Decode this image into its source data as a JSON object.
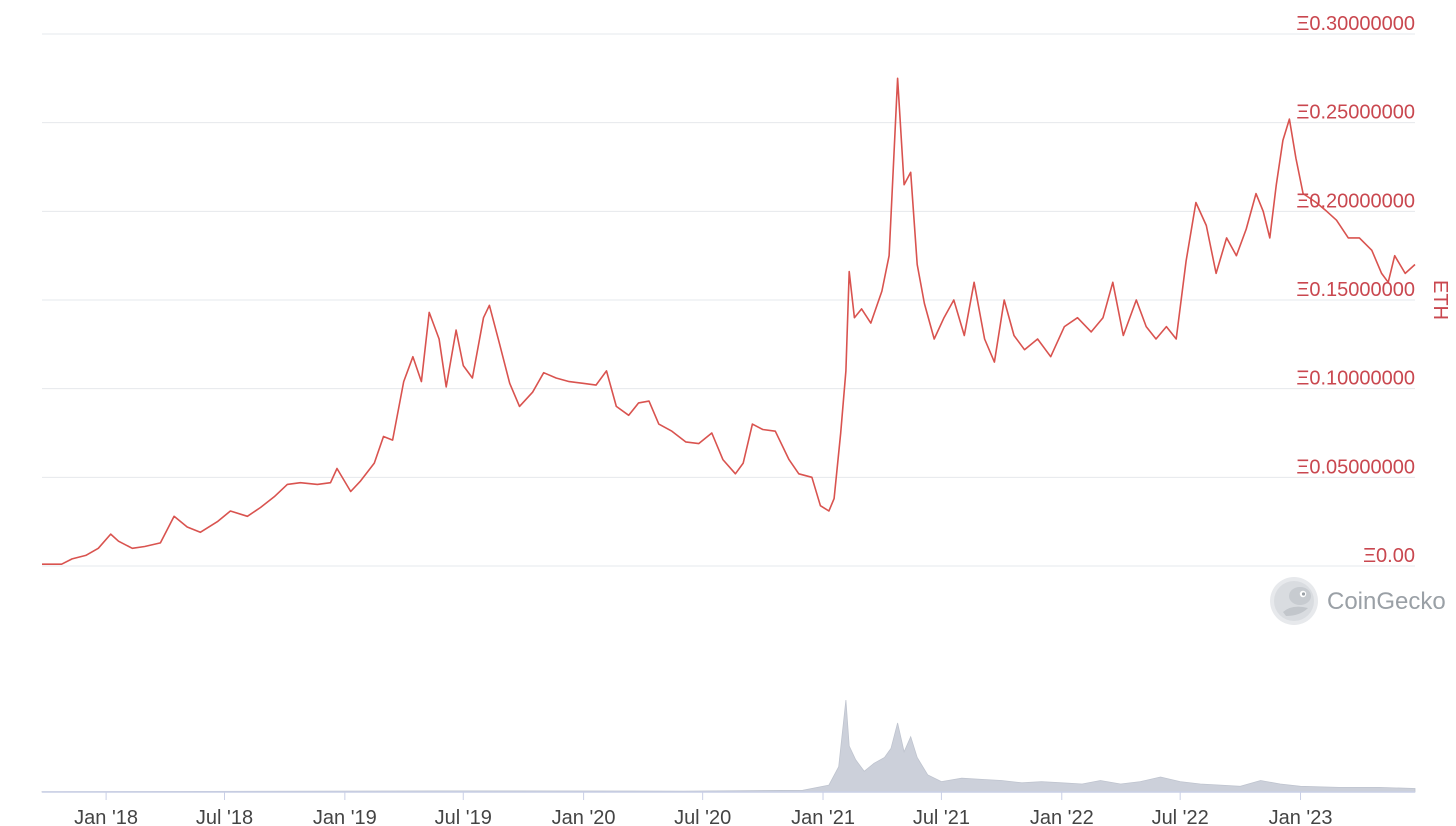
{
  "chart_data": {
    "type": "line",
    "ylabel": "ETH",
    "y_ticks": [
      "Ξ0.00",
      "Ξ0.05000000",
      "Ξ0.10000000",
      "Ξ0.15000000",
      "Ξ0.20000000",
      "Ξ0.25000000",
      "Ξ0.30000000"
    ],
    "y_tick_values": [
      0,
      0.05,
      0.1,
      0.15,
      0.2,
      0.25,
      0.3
    ],
    "ylim": [
      0,
      0.3
    ],
    "x_ticks": [
      "Jan '18",
      "Jul '18",
      "Jan '19",
      "Jul '19",
      "Jan '20",
      "Jul '20",
      "Jan '21",
      "Jul '21",
      "Jan '22",
      "Jul '22",
      "Jan '23"
    ],
    "x_tick_dates": [
      "2018-01-01",
      "2018-07-01",
      "2019-01-01",
      "2019-07-01",
      "2020-01-01",
      "2020-07-01",
      "2021-01-01",
      "2021-07-01",
      "2022-01-01",
      "2022-07-01",
      "2023-01-01"
    ],
    "xlim": [
      "2017-09-25",
      "2023-06-25"
    ],
    "grid": true,
    "series": [
      {
        "color": "#d9534f",
        "points": [
          [
            "2017-09-25",
            0.001
          ],
          [
            "2017-10-25",
            0.001
          ],
          [
            "2017-11-10",
            0.004
          ],
          [
            "2017-12-01",
            0.006
          ],
          [
            "2017-12-20",
            0.01
          ],
          [
            "2018-01-08",
            0.018
          ],
          [
            "2018-01-20",
            0.014
          ],
          [
            "2018-02-10",
            0.01
          ],
          [
            "2018-03-01",
            0.011
          ],
          [
            "2018-03-25",
            0.013
          ],
          [
            "2018-04-15",
            0.028
          ],
          [
            "2018-05-05",
            0.022
          ],
          [
            "2018-05-25",
            0.019
          ],
          [
            "2018-06-20",
            0.025
          ],
          [
            "2018-07-10",
            0.031
          ],
          [
            "2018-08-05",
            0.028
          ],
          [
            "2018-08-25",
            0.033
          ],
          [
            "2018-09-15",
            0.039
          ],
          [
            "2018-10-05",
            0.046
          ],
          [
            "2018-10-25",
            0.047
          ],
          [
            "2018-11-20",
            0.046
          ],
          [
            "2018-12-10",
            0.047
          ],
          [
            "2018-12-20",
            0.055
          ],
          [
            "2019-01-10",
            0.042
          ],
          [
            "2019-01-25",
            0.048
          ],
          [
            "2019-02-15",
            0.058
          ],
          [
            "2019-03-01",
            0.073
          ],
          [
            "2019-03-15",
            0.071
          ],
          [
            "2019-04-01",
            0.104
          ],
          [
            "2019-04-15",
            0.118
          ],
          [
            "2019-04-28",
            0.104
          ],
          [
            "2019-05-10",
            0.143
          ],
          [
            "2019-05-25",
            0.128
          ],
          [
            "2019-06-05",
            0.101
          ],
          [
            "2019-06-20",
            0.133
          ],
          [
            "2019-07-01",
            0.113
          ],
          [
            "2019-07-15",
            0.106
          ],
          [
            "2019-08-01",
            0.14
          ],
          [
            "2019-08-10",
            0.147
          ],
          [
            "2019-08-25",
            0.126
          ],
          [
            "2019-09-10",
            0.103
          ],
          [
            "2019-09-25",
            0.09
          ],
          [
            "2019-10-15",
            0.098
          ],
          [
            "2019-11-01",
            0.109
          ],
          [
            "2019-11-20",
            0.106
          ],
          [
            "2019-12-10",
            0.104
          ],
          [
            "2019-12-31",
            0.103
          ],
          [
            "2020-01-20",
            0.102
          ],
          [
            "2020-02-05",
            0.11
          ],
          [
            "2020-02-20",
            0.09
          ],
          [
            "2020-03-10",
            0.085
          ],
          [
            "2020-03-25",
            0.092
          ],
          [
            "2020-04-10",
            0.093
          ],
          [
            "2020-04-25",
            0.08
          ],
          [
            "2020-05-15",
            0.076
          ],
          [
            "2020-06-05",
            0.07
          ],
          [
            "2020-06-25",
            0.069
          ],
          [
            "2020-07-15",
            0.075
          ],
          [
            "2020-08-01",
            0.06
          ],
          [
            "2020-08-20",
            0.052
          ],
          [
            "2020-09-01",
            0.058
          ],
          [
            "2020-09-15",
            0.08
          ],
          [
            "2020-10-01",
            0.077
          ],
          [
            "2020-10-20",
            0.076
          ],
          [
            "2020-11-10",
            0.06
          ],
          [
            "2020-11-25",
            0.052
          ],
          [
            "2020-12-15",
            0.05
          ],
          [
            "2020-12-28",
            0.034
          ],
          [
            "2021-01-10",
            0.031
          ],
          [
            "2021-01-18",
            0.038
          ],
          [
            "2021-01-28",
            0.075
          ],
          [
            "2021-02-05",
            0.11
          ],
          [
            "2021-02-10",
            0.166
          ],
          [
            "2021-02-18",
            0.14
          ],
          [
            "2021-03-01",
            0.145
          ],
          [
            "2021-03-15",
            0.137
          ],
          [
            "2021-04-01",
            0.155
          ],
          [
            "2021-04-12",
            0.175
          ],
          [
            "2021-04-25",
            0.275
          ],
          [
            "2021-05-05",
            0.215
          ],
          [
            "2021-05-15",
            0.222
          ],
          [
            "2021-05-25",
            0.17
          ],
          [
            "2021-06-05",
            0.148
          ],
          [
            "2021-06-20",
            0.128
          ],
          [
            "2021-07-05",
            0.14
          ],
          [
            "2021-07-20",
            0.15
          ],
          [
            "2021-08-05",
            0.13
          ],
          [
            "2021-08-20",
            0.16
          ],
          [
            "2021-09-05",
            0.128
          ],
          [
            "2021-09-20",
            0.115
          ],
          [
            "2021-10-05",
            0.15
          ],
          [
            "2021-10-20",
            0.13
          ],
          [
            "2021-11-05",
            0.122
          ],
          [
            "2021-11-25",
            0.128
          ],
          [
            "2021-12-15",
            0.118
          ],
          [
            "2022-01-05",
            0.135
          ],
          [
            "2022-01-25",
            0.14
          ],
          [
            "2022-02-15",
            0.132
          ],
          [
            "2022-03-05",
            0.14
          ],
          [
            "2022-03-20",
            0.16
          ],
          [
            "2022-04-05",
            0.13
          ],
          [
            "2022-04-25",
            0.15
          ],
          [
            "2022-05-10",
            0.135
          ],
          [
            "2022-05-25",
            0.128
          ],
          [
            "2022-06-10",
            0.135
          ],
          [
            "2022-06-25",
            0.128
          ],
          [
            "2022-07-10",
            0.172
          ],
          [
            "2022-07-25",
            0.205
          ],
          [
            "2022-08-10",
            0.192
          ],
          [
            "2022-08-25",
            0.165
          ],
          [
            "2022-09-10",
            0.185
          ],
          [
            "2022-09-25",
            0.175
          ],
          [
            "2022-10-10",
            0.19
          ],
          [
            "2022-10-25",
            0.21
          ],
          [
            "2022-11-05",
            0.2
          ],
          [
            "2022-11-15",
            0.185
          ],
          [
            "2022-11-25",
            0.215
          ],
          [
            "2022-12-05",
            0.24
          ],
          [
            "2022-12-15",
            0.252
          ],
          [
            "2022-12-25",
            0.23
          ],
          [
            "2023-01-05",
            0.21
          ],
          [
            "2023-01-25",
            0.205
          ],
          [
            "2023-02-10",
            0.2
          ],
          [
            "2023-02-25",
            0.195
          ],
          [
            "2023-03-15",
            0.185
          ],
          [
            "2023-04-01",
            0.185
          ],
          [
            "2023-04-20",
            0.178
          ],
          [
            "2023-05-05",
            0.165
          ],
          [
            "2023-05-15",
            0.16
          ],
          [
            "2023-05-25",
            0.175
          ],
          [
            "2023-06-10",
            0.165
          ],
          [
            "2023-06-25",
            0.17
          ]
        ]
      }
    ],
    "volume": {
      "color": "#ccd0da",
      "points": [
        [
          "2017-09-25",
          0.3
        ],
        [
          "2018-06-01",
          0.5
        ],
        [
          "2019-06-01",
          1.0
        ],
        [
          "2020-06-01",
          0.8
        ],
        [
          "2020-12-01",
          1.5
        ],
        [
          "2021-01-10",
          6
        ],
        [
          "2021-01-25",
          22
        ],
        [
          "2021-02-05",
          80
        ],
        [
          "2021-02-10",
          40
        ],
        [
          "2021-02-20",
          28
        ],
        [
          "2021-03-05",
          18
        ],
        [
          "2021-03-20",
          25
        ],
        [
          "2021-04-05",
          30
        ],
        [
          "2021-04-15",
          38
        ],
        [
          "2021-04-25",
          60
        ],
        [
          "2021-05-05",
          35
        ],
        [
          "2021-05-15",
          48
        ],
        [
          "2021-05-25",
          30
        ],
        [
          "2021-06-10",
          15
        ],
        [
          "2021-07-01",
          9
        ],
        [
          "2021-08-01",
          12
        ],
        [
          "2021-09-01",
          11
        ],
        [
          "2021-10-01",
          10
        ],
        [
          "2021-11-01",
          8
        ],
        [
          "2021-12-01",
          9
        ],
        [
          "2022-01-01",
          8
        ],
        [
          "2022-02-01",
          7
        ],
        [
          "2022-03-01",
          10
        ],
        [
          "2022-04-01",
          7
        ],
        [
          "2022-05-01",
          9
        ],
        [
          "2022-06-01",
          13
        ],
        [
          "2022-07-01",
          9
        ],
        [
          "2022-08-01",
          7
        ],
        [
          "2022-09-01",
          6
        ],
        [
          "2022-10-01",
          5
        ],
        [
          "2022-11-01",
          10
        ],
        [
          "2022-12-01",
          7
        ],
        [
          "2023-01-01",
          5
        ],
        [
          "2023-03-01",
          4
        ],
        [
          "2023-05-01",
          4
        ],
        [
          "2023-06-25",
          3
        ]
      ]
    }
  },
  "watermark": {
    "text": "CoinGecko",
    "icon": "coingecko-gecko-icon"
  }
}
